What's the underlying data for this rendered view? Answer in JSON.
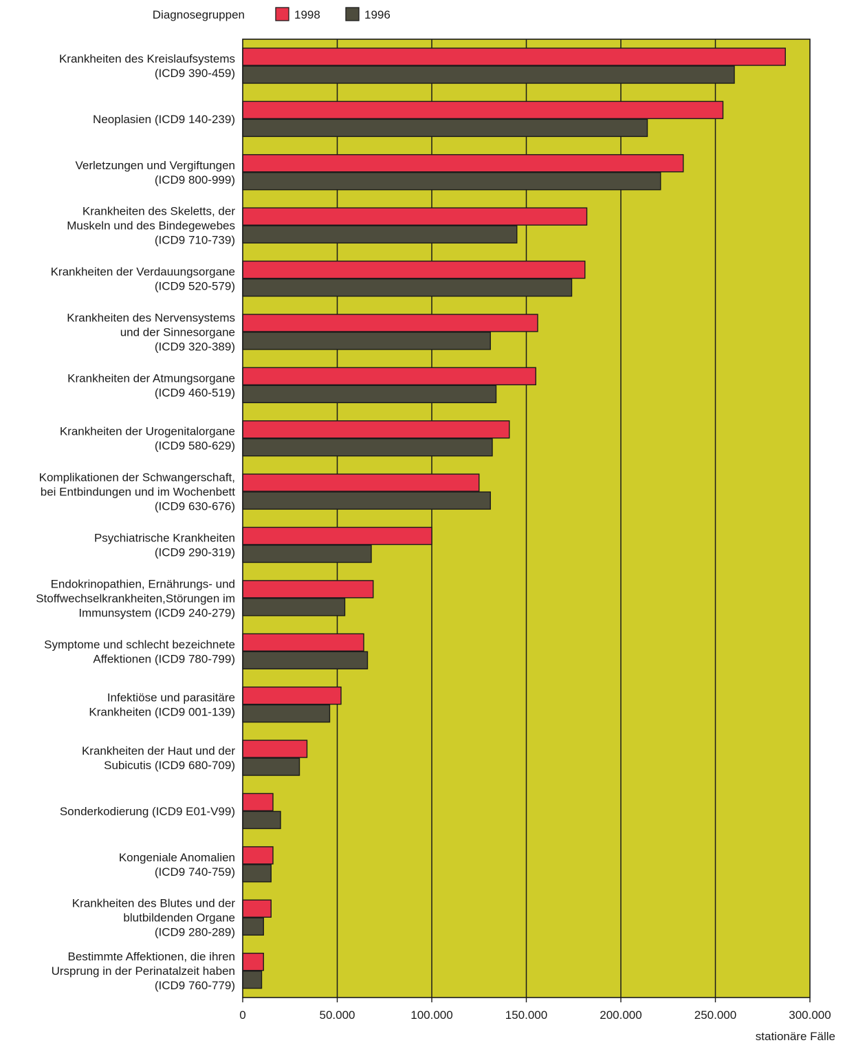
{
  "chart_data": {
    "type": "bar",
    "orientation": "horizontal",
    "legend_title": "Diagnosegruppen",
    "legend_placement": "top",
    "xlabel": "stationäre Fälle",
    "xlim": [
      0,
      300000
    ],
    "x_ticks": [
      0,
      50000,
      100000,
      150000,
      200000,
      250000,
      300000
    ],
    "x_tick_labels": [
      "0",
      "50.000",
      "100.000",
      "150.000",
      "200.000",
      "250.000",
      "300.000"
    ],
    "grid": "vertical",
    "categories": [
      [
        "Krankheiten des Kreislaufsystems",
        "(ICD9 390-459)"
      ],
      [
        "Neoplasien (ICD9 140-239)"
      ],
      [
        "Verletzungen und Vergiftungen",
        "(ICD9 800-999)"
      ],
      [
        "Krankheiten des Skeletts, der",
        "Muskeln und des Bindegewebes",
        "(ICD9 710-739)"
      ],
      [
        "Krankheiten der Verdauungsorgane",
        "(ICD9 520-579)"
      ],
      [
        "Krankheiten des Nervensystems",
        "und der Sinnesorgane",
        "(ICD9 320-389)"
      ],
      [
        "Krankheiten der Atmungsorgane",
        "(ICD9 460-519)"
      ],
      [
        "Krankheiten der Urogenitalorgane",
        "(ICD9 580-629)"
      ],
      [
        "Komplikationen der Schwangerschaft,",
        "bei Entbindungen und im Wochenbett",
        "(ICD9 630-676)"
      ],
      [
        "Psychiatrische Krankheiten",
        "(ICD9 290-319)"
      ],
      [
        "Endokrinopathien, Ernährungs- und",
        "Stoffwechselkrankheiten,Störungen im",
        "Immunsystem (ICD9 240-279)"
      ],
      [
        "Symptome und schlecht bezeichnete",
        "Affektionen (ICD9 780-799)"
      ],
      [
        "Infektiöse und parasitäre",
        "Krankheiten (ICD9 001-139)"
      ],
      [
        "Krankheiten der Haut und der",
        "Subicutis (ICD9 680-709)"
      ],
      [
        "Sonderkodierung (ICD9 E01-V99)"
      ],
      [
        "Kongeniale Anomalien",
        "(ICD9 740-759)"
      ],
      [
        "Krankheiten des Blutes und der",
        "blutbildenden Organe",
        "(ICD9 280-289)"
      ],
      [
        "Bestimmte Affektionen, die ihren",
        "Ursprung in der Perinatalzeit haben",
        "(ICD9 760-779)"
      ]
    ],
    "series": [
      {
        "name": "1998",
        "color": "#e8334a",
        "values": [
          287000,
          254000,
          233000,
          182000,
          181000,
          156000,
          155000,
          141000,
          125000,
          100000,
          69000,
          64000,
          52000,
          34000,
          16000,
          16000,
          15000,
          11000
        ]
      },
      {
        "name": "1996",
        "color": "#4d4c3d",
        "values": [
          260000,
          214000,
          221000,
          145000,
          174000,
          131000,
          134000,
          132000,
          131000,
          68000,
          54000,
          66000,
          46000,
          30000,
          20000,
          15000,
          11000,
          10000
        ]
      }
    ],
    "colors": {
      "plot_background": "#cfcc2a",
      "grid": "#1a1a1a",
      "text": "#1a1a1a"
    }
  }
}
